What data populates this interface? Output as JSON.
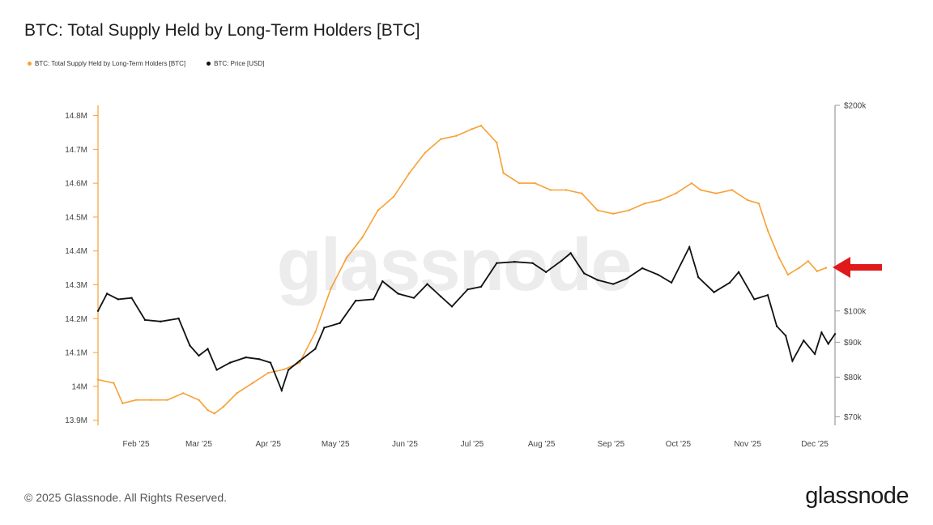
{
  "title": "BTC: Total Supply Held by Long-Term Holders [BTC]",
  "footer": "© 2025 Glassnode. All Rights Reserved.",
  "brand": "glassnode",
  "watermark": "glassnode",
  "colors": {
    "supply": "#f7a136",
    "price": "#111111",
    "arrow": "#e0191b"
  },
  "chart_data": {
    "type": "line",
    "title": "BTC: Total Supply Held by Long-Term Holders [BTC]",
    "legend_position": "top-left",
    "grid": false,
    "x_labels": [
      "Feb '25",
      "Mar '25",
      "Apr '25",
      "May '25",
      "Jun '25",
      "Jul '25",
      "Aug '25",
      "Sep '25",
      "Oct '25",
      "Nov '25",
      "Dec '25"
    ],
    "left_axis": {
      "ticks": [
        "14.8M",
        "14.7M",
        "14.6M",
        "14.5M",
        "14.4M",
        "14.3M",
        "14.2M",
        "14.1M",
        "14M",
        "13.9M"
      ],
      "ylim": [
        13.885,
        14.83
      ]
    },
    "right_axis": {
      "scale": "log",
      "ticks": [
        "$200k",
        "$100k",
        "$90k",
        "$80k",
        "$70k"
      ],
      "ylim": [
        68000,
        200000
      ]
    },
    "annotation": "red arrow pointing at latest value of the supply series",
    "series": [
      {
        "name": "BTC: Total Supply Held by Long-Term Holders [BTC]",
        "axis": "left",
        "color": "#f7a136",
        "points": [
          [
            "2025-01-15",
            14.02
          ],
          [
            "2025-01-22",
            14.01
          ],
          [
            "2025-01-26",
            13.95
          ],
          [
            "2025-02-01",
            13.96
          ],
          [
            "2025-02-08",
            13.96
          ],
          [
            "2025-02-15",
            13.96
          ],
          [
            "2025-02-22",
            13.98
          ],
          [
            "2025-03-01",
            13.96
          ],
          [
            "2025-03-05",
            13.93
          ],
          [
            "2025-03-08",
            13.92
          ],
          [
            "2025-03-12",
            13.94
          ],
          [
            "2025-03-18",
            13.98
          ],
          [
            "2025-03-25",
            14.01
          ],
          [
            "2025-04-01",
            14.04
          ],
          [
            "2025-04-08",
            14.05
          ],
          [
            "2025-04-15",
            14.07
          ],
          [
            "2025-04-22",
            14.16
          ],
          [
            "2025-04-29",
            14.29
          ],
          [
            "2025-05-06",
            14.38
          ],
          [
            "2025-05-13",
            14.44
          ],
          [
            "2025-05-20",
            14.52
          ],
          [
            "2025-05-27",
            14.56
          ],
          [
            "2025-06-03",
            14.63
          ],
          [
            "2025-06-10",
            14.69
          ],
          [
            "2025-06-17",
            14.73
          ],
          [
            "2025-06-24",
            14.74
          ],
          [
            "2025-07-01",
            14.76
          ],
          [
            "2025-07-05",
            14.77
          ],
          [
            "2025-07-12",
            14.72
          ],
          [
            "2025-07-15",
            14.63
          ],
          [
            "2025-07-22",
            14.6
          ],
          [
            "2025-07-29",
            14.6
          ],
          [
            "2025-08-05",
            14.58
          ],
          [
            "2025-08-12",
            14.58
          ],
          [
            "2025-08-19",
            14.57
          ],
          [
            "2025-08-26",
            14.52
          ],
          [
            "2025-09-02",
            14.51
          ],
          [
            "2025-09-09",
            14.52
          ],
          [
            "2025-09-16",
            14.54
          ],
          [
            "2025-09-23",
            14.55
          ],
          [
            "2025-09-30",
            14.57
          ],
          [
            "2025-10-07",
            14.6
          ],
          [
            "2025-10-11",
            14.58
          ],
          [
            "2025-10-18",
            14.57
          ],
          [
            "2025-10-25",
            14.58
          ],
          [
            "2025-11-01",
            14.55
          ],
          [
            "2025-11-06",
            14.54
          ],
          [
            "2025-11-10",
            14.46
          ],
          [
            "2025-11-15",
            14.38
          ],
          [
            "2025-11-19",
            14.33
          ],
          [
            "2025-11-24",
            14.35
          ],
          [
            "2025-11-28",
            14.37
          ],
          [
            "2025-12-02",
            14.34
          ],
          [
            "2025-12-06",
            14.35
          ]
        ]
      },
      {
        "name": "BTC: Price [USD]",
        "axis": "right",
        "color": "#111111",
        "points": [
          [
            "2025-01-15",
            100000
          ],
          [
            "2025-01-19",
            106000
          ],
          [
            "2025-01-24",
            104000
          ],
          [
            "2025-01-30",
            104500
          ],
          [
            "2025-02-05",
            97000
          ],
          [
            "2025-02-12",
            96500
          ],
          [
            "2025-02-20",
            97500
          ],
          [
            "2025-02-25",
            89000
          ],
          [
            "2025-03-01",
            86000
          ],
          [
            "2025-03-05",
            88000
          ],
          [
            "2025-03-09",
            82000
          ],
          [
            "2025-03-15",
            84000
          ],
          [
            "2025-03-22",
            85500
          ],
          [
            "2025-03-28",
            85000
          ],
          [
            "2025-04-02",
            84000
          ],
          [
            "2025-04-07",
            76500
          ],
          [
            "2025-04-10",
            82000
          ],
          [
            "2025-04-15",
            84500
          ],
          [
            "2025-04-22",
            88000
          ],
          [
            "2025-04-26",
            94500
          ],
          [
            "2025-05-03",
            96000
          ],
          [
            "2025-05-10",
            103500
          ],
          [
            "2025-05-18",
            104000
          ],
          [
            "2025-05-22",
            110500
          ],
          [
            "2025-05-29",
            106000
          ],
          [
            "2025-06-05",
            104500
          ],
          [
            "2025-06-11",
            109500
          ],
          [
            "2025-06-17",
            105000
          ],
          [
            "2025-06-22",
            101500
          ],
          [
            "2025-06-29",
            107500
          ],
          [
            "2025-07-05",
            108500
          ],
          [
            "2025-07-12",
            117500
          ],
          [
            "2025-07-20",
            118000
          ],
          [
            "2025-07-28",
            117500
          ],
          [
            "2025-08-03",
            114000
          ],
          [
            "2025-08-10",
            118500
          ],
          [
            "2025-08-14",
            121500
          ],
          [
            "2025-08-20",
            113500
          ],
          [
            "2025-08-26",
            111000
          ],
          [
            "2025-09-02",
            109500
          ],
          [
            "2025-09-08",
            111500
          ],
          [
            "2025-09-15",
            115500
          ],
          [
            "2025-09-22",
            113000
          ],
          [
            "2025-09-28",
            110000
          ],
          [
            "2025-10-06",
            124000
          ],
          [
            "2025-10-10",
            112000
          ],
          [
            "2025-10-17",
            106500
          ],
          [
            "2025-10-24",
            110000
          ],
          [
            "2025-10-28",
            114000
          ],
          [
            "2025-11-04",
            104000
          ],
          [
            "2025-11-10",
            105500
          ],
          [
            "2025-11-14",
            95000
          ],
          [
            "2025-11-18",
            92000
          ],
          [
            "2025-11-21",
            84500
          ],
          [
            "2025-11-26",
            90500
          ],
          [
            "2025-12-01",
            86500
          ],
          [
            "2025-12-04",
            93000
          ],
          [
            "2025-12-07",
            89500
          ],
          [
            "2025-12-10",
            92500
          ]
        ]
      }
    ]
  }
}
